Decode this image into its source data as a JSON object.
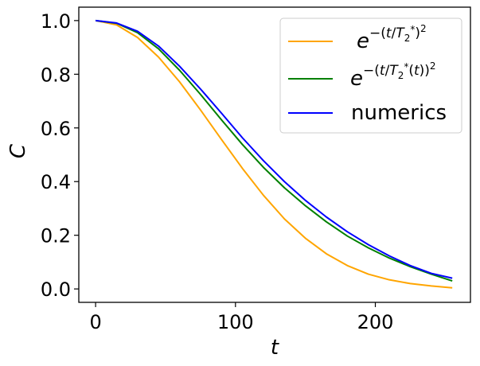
{
  "chart_data": {
    "type": "line",
    "xlabel": "t",
    "ylabel": "C",
    "xlim": [
      -12,
      268
    ],
    "ylim": [
      -0.05,
      1.05
    ],
    "xticks": [
      0,
      100,
      200
    ],
    "xtick_labels": [
      "0",
      "100",
      "200"
    ],
    "yticks": [
      0.0,
      0.2,
      0.4,
      0.6,
      0.8,
      1.0
    ],
    "ytick_labels": [
      "0.0",
      "0.2",
      "0.4",
      "0.6",
      "0.8",
      "1.0"
    ],
    "grid": false,
    "legend_position": "top-right",
    "series": [
      {
        "name": "e^{-(t/T_2^*)^2}",
        "color": "#ffa500",
        "x": [
          0,
          15,
          30,
          45,
          60,
          75,
          90,
          105,
          120,
          135,
          150,
          165,
          180,
          195,
          210,
          225,
          240,
          255
        ],
        "y": [
          1.0,
          0.984,
          0.937,
          0.864,
          0.772,
          0.667,
          0.557,
          0.449,
          0.349,
          0.261,
          0.189,
          0.131,
          0.087,
          0.055,
          0.034,
          0.02,
          0.011,
          0.004
        ]
      },
      {
        "name": "e^{-(t/T_2^*(t))^2}",
        "color": "#008000",
        "x": [
          0,
          15,
          30,
          45,
          60,
          75,
          90,
          105,
          120,
          135,
          150,
          165,
          180,
          195,
          210,
          225,
          240,
          255
        ],
        "y": [
          1.0,
          0.99,
          0.955,
          0.895,
          0.815,
          0.725,
          0.63,
          0.538,
          0.453,
          0.377,
          0.31,
          0.25,
          0.197,
          0.153,
          0.115,
          0.083,
          0.055,
          0.03
        ]
      },
      {
        "name": "numerics",
        "color": "#0000ff",
        "x": [
          0,
          15,
          30,
          45,
          60,
          75,
          90,
          105,
          120,
          135,
          150,
          165,
          180,
          195,
          210,
          225,
          240,
          255
        ],
        "y": [
          1.0,
          0.991,
          0.96,
          0.905,
          0.83,
          0.745,
          0.655,
          0.563,
          0.478,
          0.4,
          0.33,
          0.268,
          0.213,
          0.165,
          0.123,
          0.087,
          0.058,
          0.04
        ]
      }
    ]
  }
}
